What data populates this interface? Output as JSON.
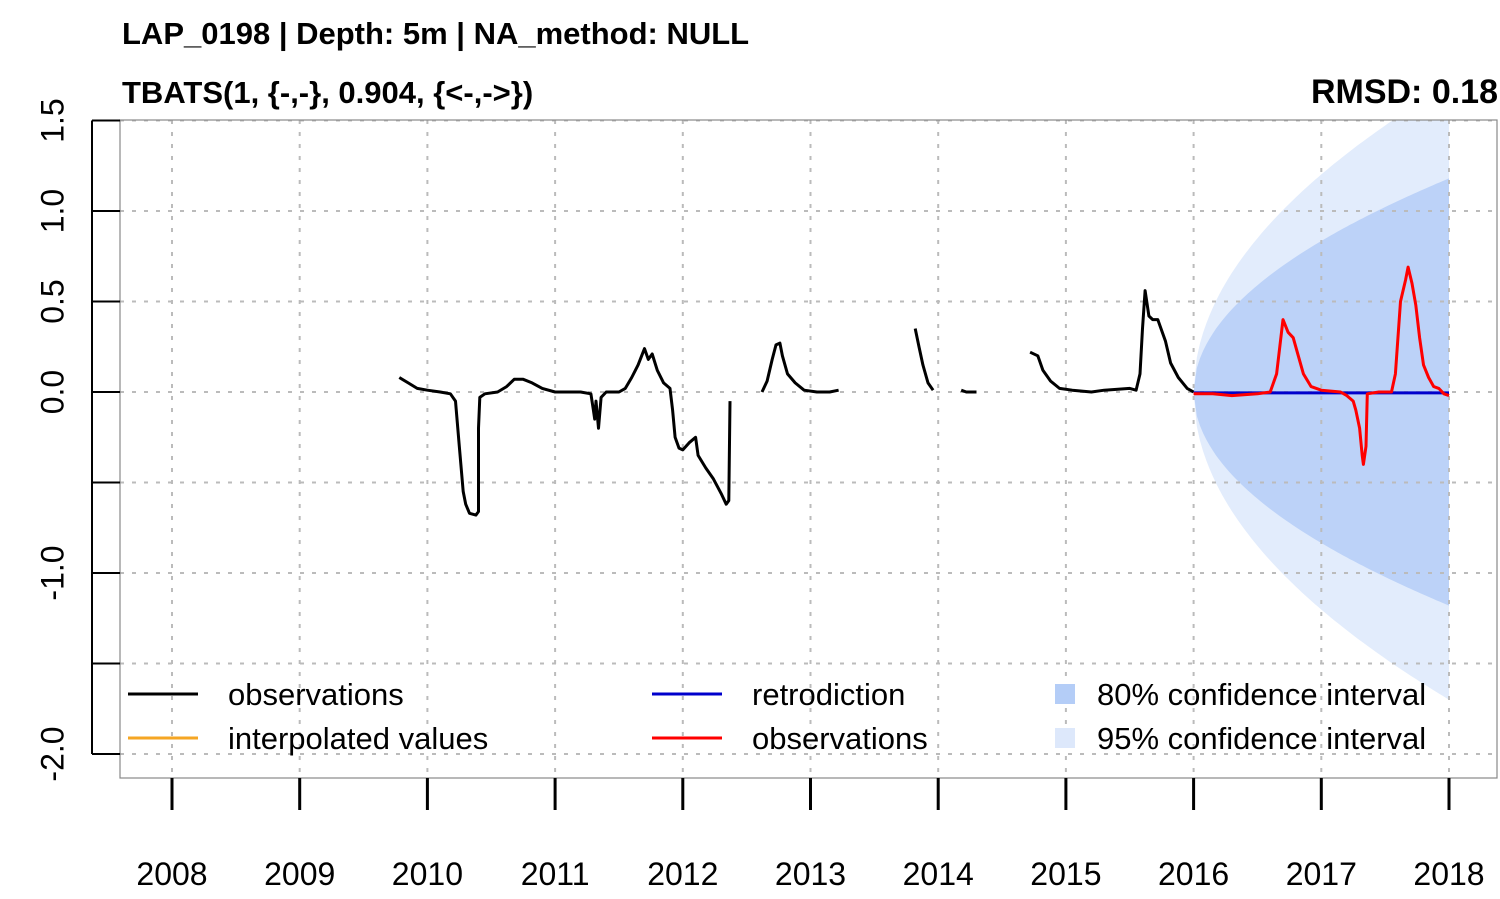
{
  "chart_data": {
    "type": "line",
    "title": "LAP_0198 | Depth: 5m | NA_method: NULL",
    "subtitle": "TBATS(1, {-,-}, 0.904, {<-,->})",
    "metric": "RMSD: 0.18",
    "xlabel": "",
    "ylabel": "",
    "xlim": [
      2007.6,
      2018.2
    ],
    "ylim": [
      -2.15,
      1.5
    ],
    "x_ticks": [
      2008,
      2009,
      2010,
      2011,
      2012,
      2013,
      2014,
      2015,
      2016,
      2017,
      2018
    ],
    "x_tick_labels": [
      "2008",
      "2009",
      "2010",
      "2011",
      "2012",
      "2013",
      "2014",
      "2015",
      "2016",
      "2017",
      "2018"
    ],
    "y_ticks": [
      1.5,
      1.0,
      0.5,
      0.0,
      -0.5,
      -1.0,
      -1.5,
      -2.0
    ],
    "y_tick_labels": [
      "1.5",
      "1.0",
      "0.5",
      "0.0",
      "",
      "-1.0",
      "",
      "-2.0"
    ],
    "grid": true,
    "legend_placement": "bottom",
    "legend": [
      {
        "label": "observations",
        "color": "#000000",
        "kind": "line"
      },
      {
        "label": "interpolated values",
        "color": "#f5a623",
        "kind": "line"
      },
      {
        "label": "retrodiction",
        "color": "#0000cc",
        "kind": "line"
      },
      {
        "label": "observations",
        "color": "#ff0000",
        "kind": "line"
      },
      {
        "label": "80% confidence interval",
        "color": "#b4cdf7",
        "kind": "box"
      },
      {
        "label": "95% confidence interval",
        "color": "#dde8fb",
        "kind": "box"
      }
    ],
    "colors": {
      "observations": "#000000",
      "test_observations": "#ff0000",
      "retrodiction": "#0000cc",
      "ci80": "#bcd2f8",
      "ci95": "#e2ecfc",
      "grid": "#bbbbbb"
    },
    "series": [
      {
        "role": "observations",
        "segments": [
          [
            [
              2009.78,
              0.08
            ],
            [
              2009.85,
              0.05
            ],
            [
              2009.92,
              0.02
            ],
            [
              2010.0,
              0.01
            ],
            [
              2010.1,
              0.0
            ],
            [
              2010.18,
              -0.01
            ],
            [
              2010.22,
              -0.05
            ],
            [
              2010.25,
              -0.3
            ],
            [
              2010.28,
              -0.55
            ],
            [
              2010.3,
              -0.62
            ],
            [
              2010.33,
              -0.67
            ],
            [
              2010.38,
              -0.68
            ],
            [
              2010.4,
              -0.66
            ],
            [
              2010.4,
              -0.2
            ],
            [
              2010.41,
              -0.03
            ],
            [
              2010.45,
              -0.01
            ],
            [
              2010.55,
              0.0
            ],
            [
              2010.62,
              0.03
            ],
            [
              2010.68,
              0.07
            ],
            [
              2010.75,
              0.07
            ],
            [
              2010.82,
              0.05
            ],
            [
              2010.9,
              0.02
            ],
            [
              2011.0,
              0.0
            ],
            [
              2011.1,
              0.0
            ],
            [
              2011.2,
              0.0
            ],
            [
              2011.28,
              -0.01
            ],
            [
              2011.3,
              -0.1
            ],
            [
              2011.31,
              -0.15
            ],
            [
              2011.32,
              -0.05
            ],
            [
              2011.34,
              -0.2
            ],
            [
              2011.36,
              -0.03
            ],
            [
              2011.4,
              0.0
            ],
            [
              2011.5,
              0.0
            ],
            [
              2011.55,
              0.02
            ],
            [
              2011.6,
              0.08
            ],
            [
              2011.65,
              0.15
            ],
            [
              2011.7,
              0.24
            ],
            [
              2011.73,
              0.18
            ],
            [
              2011.76,
              0.21
            ],
            [
              2011.8,
              0.12
            ],
            [
              2011.85,
              0.05
            ],
            [
              2011.9,
              0.02
            ],
            [
              2011.92,
              -0.1
            ],
            [
              2011.94,
              -0.25
            ],
            [
              2011.97,
              -0.31
            ],
            [
              2012.0,
              -0.32
            ],
            [
              2012.05,
              -0.28
            ],
            [
              2012.1,
              -0.25
            ],
            [
              2012.12,
              -0.35
            ],
            [
              2012.18,
              -0.42
            ],
            [
              2012.24,
              -0.48
            ],
            [
              2012.3,
              -0.56
            ],
            [
              2012.34,
              -0.62
            ],
            [
              2012.36,
              -0.6
            ],
            [
              2012.37,
              -0.05
            ]
          ],
          [
            [
              2012.62,
              0.0
            ],
            [
              2012.66,
              0.06
            ],
            [
              2012.7,
              0.18
            ],
            [
              2012.73,
              0.26
            ],
            [
              2012.76,
              0.27
            ],
            [
              2012.78,
              0.2
            ],
            [
              2012.82,
              0.1
            ],
            [
              2012.88,
              0.05
            ],
            [
              2012.95,
              0.01
            ],
            [
              2013.05,
              0.0
            ],
            [
              2013.15,
              0.0
            ],
            [
              2013.22,
              0.01
            ]
          ],
          [
            [
              2013.82,
              0.35
            ],
            [
              2013.85,
              0.25
            ],
            [
              2013.88,
              0.15
            ],
            [
              2013.92,
              0.05
            ],
            [
              2013.96,
              0.01
            ]
          ],
          [
            [
              2014.18,
              0.01
            ],
            [
              2014.22,
              0.0
            ],
            [
              2014.3,
              0.0
            ]
          ],
          [
            [
              2014.72,
              0.22
            ],
            [
              2014.78,
              0.2
            ],
            [
              2014.82,
              0.12
            ],
            [
              2014.88,
              0.06
            ],
            [
              2014.95,
              0.02
            ],
            [
              2015.05,
              0.01
            ],
            [
              2015.2,
              0.0
            ],
            [
              2015.3,
              0.01
            ],
            [
              2015.5,
              0.02
            ],
            [
              2015.55,
              0.01
            ],
            [
              2015.58,
              0.1
            ],
            [
              2015.6,
              0.35
            ],
            [
              2015.62,
              0.56
            ],
            [
              2015.65,
              0.42
            ],
            [
              2015.68,
              0.4
            ],
            [
              2015.72,
              0.4
            ],
            [
              2015.78,
              0.28
            ],
            [
              2015.82,
              0.16
            ],
            [
              2015.88,
              0.08
            ],
            [
              2015.95,
              0.02
            ],
            [
              2016.0,
              0.0
            ]
          ]
        ]
      },
      {
        "role": "test_observations",
        "segments": [
          [
            [
              2016.0,
              -0.01
            ],
            [
              2016.15,
              -0.01
            ],
            [
              2016.3,
              -0.02
            ],
            [
              2016.5,
              -0.01
            ],
            [
              2016.6,
              0.0
            ],
            [
              2016.65,
              0.1
            ],
            [
              2016.7,
              0.4
            ],
            [
              2016.74,
              0.33
            ],
            [
              2016.78,
              0.3
            ],
            [
              2016.82,
              0.2
            ],
            [
              2016.86,
              0.1
            ],
            [
              2016.92,
              0.03
            ],
            [
              2017.0,
              0.01
            ],
            [
              2017.15,
              0.0
            ],
            [
              2017.2,
              -0.02
            ],
            [
              2017.25,
              -0.05
            ],
            [
              2017.27,
              -0.1
            ],
            [
              2017.3,
              -0.2
            ],
            [
              2017.32,
              -0.35
            ],
            [
              2017.33,
              -0.4
            ],
            [
              2017.35,
              -0.3
            ],
            [
              2017.36,
              -0.01
            ],
            [
              2017.45,
              0.0
            ],
            [
              2017.55,
              0.0
            ],
            [
              2017.58,
              0.1
            ],
            [
              2017.62,
              0.5
            ],
            [
              2017.66,
              0.62
            ],
            [
              2017.68,
              0.69
            ],
            [
              2017.71,
              0.6
            ],
            [
              2017.74,
              0.48
            ],
            [
              2017.77,
              0.3
            ],
            [
              2017.8,
              0.15
            ],
            [
              2017.84,
              0.08
            ],
            [
              2017.88,
              0.03
            ],
            [
              2017.92,
              0.02
            ],
            [
              2017.96,
              -0.01
            ],
            [
              2018.0,
              -0.02
            ]
          ]
        ]
      },
      {
        "role": "retrodiction",
        "segments": [
          [
            [
              2016.0,
              -0.005
            ],
            [
              2018.0,
              -0.005
            ]
          ]
        ]
      }
    ],
    "confidence_bands": [
      {
        "level": "95%",
        "start": 2016.0,
        "end": 2018.0,
        "width_at_end": 1.7,
        "center": 0.0
      },
      {
        "level": "80%",
        "start": 2016.0,
        "end": 2018.0,
        "width_at_end": 1.18,
        "center": 0.0
      }
    ]
  }
}
